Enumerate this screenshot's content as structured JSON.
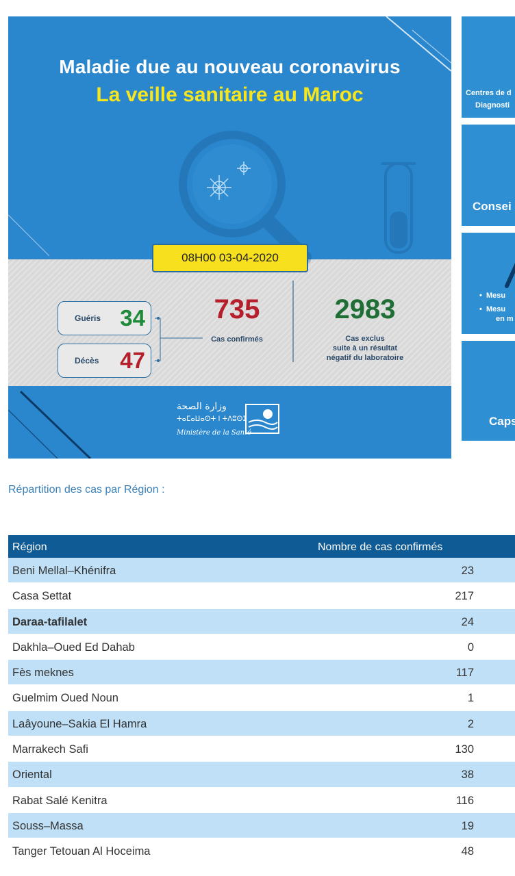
{
  "banner": {
    "title_line1": "Maladie due au nouveau coronavirus",
    "title_line2": "La veille sanitaire au Maroc",
    "date_label": "08H00  03-04-2020",
    "gueris_label": "Guéris",
    "gueris_value": "34",
    "deces_label": "Décès",
    "deces_value": "47",
    "confirmed_value": "735",
    "confirmed_label": "Cas confirmés",
    "excluded_value": "2983",
    "excluded_label_1": "Cas exclus",
    "excluded_label_2": "suite à un résultat",
    "excluded_label_3": "négatif du laboratoire",
    "ministry_arabic": "وزارة الصحة",
    "ministry_tifinagh": "ⵜⴰⵎⴰⵡⴰⵙⵜ ⵏ ⵜⴷⵓⵙⵉ",
    "ministry_fr": "Ministère de la Santé"
  },
  "side_cards": {
    "card1_line1": "Centres de d",
    "card1_line2": "Diagnosti",
    "card2_title": "Consei",
    "card3_line1": "Mesu",
    "card3_line2": "Mesu",
    "card3_line3": "en m",
    "card4_title": "Caps"
  },
  "section_title": "Répartition des cas par Région :",
  "table": {
    "headers": {
      "region": "Région",
      "count": "Nombre de cas confirmés"
    },
    "rows": [
      {
        "region": "Beni Mellal–Khénifra",
        "count": "23"
      },
      {
        "region": "Casa Settat",
        "count": "217"
      },
      {
        "region": "Daraa-tafilalet",
        "count": "24"
      },
      {
        "region": "Dakhla–Oued Ed Dahab",
        "count": "0"
      },
      {
        "region": "Fès meknes",
        "count": "117"
      },
      {
        "region": "Guelmim Oued Noun",
        "count": "1"
      },
      {
        "region": "Laâyoune–Sakia El Hamra",
        "count": "2"
      },
      {
        "region": "Marrakech Safi",
        "count": "130"
      },
      {
        "region": "Oriental",
        "count": "38"
      },
      {
        "region": "Rabat Salé Kenitra",
        "count": "116"
      },
      {
        "region": "Souss–Massa",
        "count": "19"
      },
      {
        "region": "Tanger Tetouan Al Hoceima",
        "count": "48"
      }
    ]
  },
  "colors": {
    "banner_blue": "#2a87cd",
    "title_yellow": "#f7e51e",
    "header_blue": "#0f5b95",
    "row_highlight": "#bfe0f7",
    "green": "#1e8a3a",
    "red": "#b51f2b"
  },
  "icons": [
    "magnifier-icon",
    "virus-icon",
    "test-tube-icon",
    "ministry-logo-icon"
  ]
}
